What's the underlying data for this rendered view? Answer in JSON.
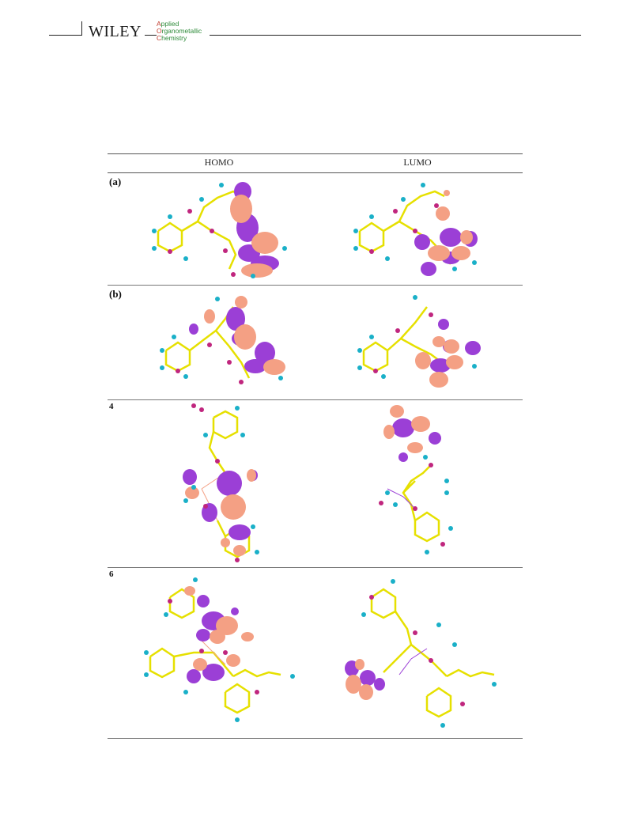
{
  "header": {
    "publisher": "WILEY",
    "journal_line1_cap": "A",
    "journal_line1_rest": "pplied",
    "journal_line2_cap": "O",
    "journal_line2_rest": "rganometallic",
    "journal_line3_cap": "C",
    "journal_line3_rest": "hemistry"
  },
  "table": {
    "col_homo": "HOMO",
    "col_lumo": "LUMO",
    "rows": [
      {
        "label": "(a)"
      },
      {
        "label": "(b)"
      },
      {
        "label": "4"
      },
      {
        "label": "6"
      }
    ]
  },
  "colors": {
    "orbital_pos": "#f4a084",
    "orbital_neg": "#9b3fd6",
    "bond": "#e6e000",
    "atom_h": "#1ab0c8",
    "atom_o": "#c0267e"
  }
}
